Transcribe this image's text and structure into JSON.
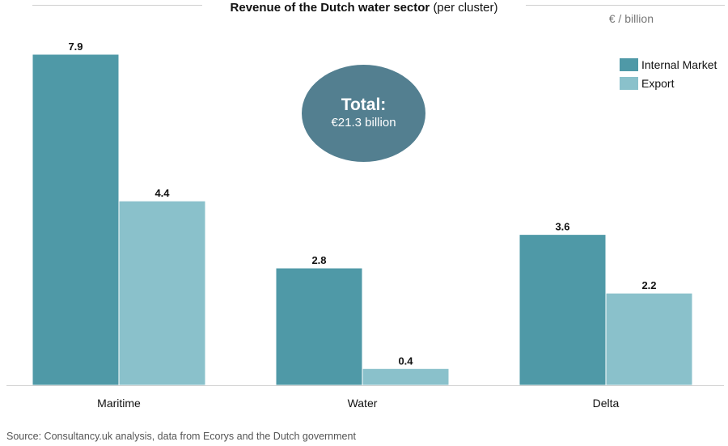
{
  "title": {
    "bold": "Revenue of the Dutch water sector",
    "normal": "(per cluster)"
  },
  "unit_label": "€ / billion",
  "total": {
    "title": "Total:",
    "value": "€21.3 billion"
  },
  "source": "Source: Consultancy.uk analysis, data from Ecorys and the Dutch government",
  "colors": {
    "internal": "#4f99a7",
    "export": "#8ac1cb",
    "bubble": "#537f90"
  },
  "chart_data": {
    "type": "bar",
    "title": "Revenue of the Dutch water sector (per cluster)",
    "ylabel": "€ / billion",
    "categories": [
      "Maritime",
      "Water",
      "Delta"
    ],
    "series": [
      {
        "name": "Internal Market",
        "values": [
          7.9,
          2.8,
          3.6
        ]
      },
      {
        "name": "Export",
        "values": [
          4.4,
          0.4,
          2.2
        ]
      }
    ],
    "ylim": [
      0,
      7.9
    ],
    "grid": false,
    "legend": "top-right"
  }
}
